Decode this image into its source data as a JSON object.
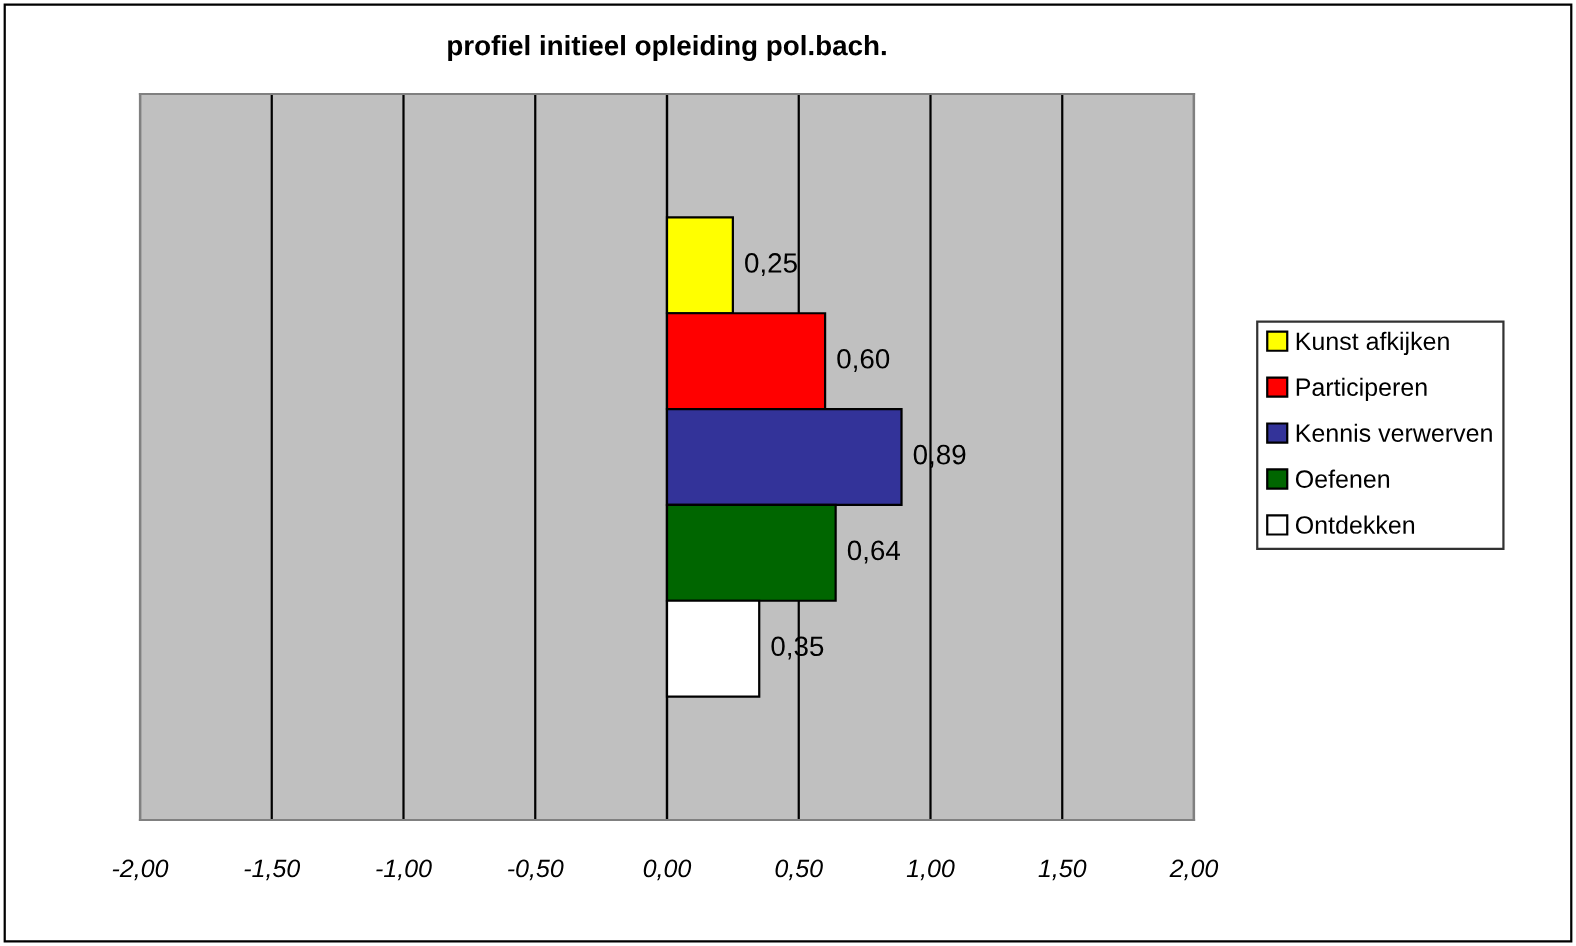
{
  "chart_data": {
    "type": "bar",
    "orientation": "horizontal",
    "title": "profiel initieel opleiding pol.bach.",
    "categories": [
      null
    ],
    "series": [
      {
        "name": "Kunst afkijken",
        "color": "#ffff00",
        "values": [
          0.25
        ],
        "value_labels": [
          "0,25"
        ]
      },
      {
        "name": "Participeren",
        "color": "#ff0000",
        "values": [
          0.6
        ],
        "value_labels": [
          "0,60"
        ]
      },
      {
        "name": "Kennis verwerven",
        "color": "#333399",
        "values": [
          0.89
        ],
        "value_labels": [
          "0,89"
        ]
      },
      {
        "name": "Oefenen",
        "color": "#006600",
        "values": [
          0.64
        ],
        "value_labels": [
          "0,64"
        ]
      },
      {
        "name": "Ontdekken",
        "color": "#ffffff",
        "values": [
          0.35
        ],
        "value_labels": [
          "0,35"
        ]
      }
    ],
    "xlim": [
      -2,
      2
    ],
    "xticks": [
      {
        "value": -2,
        "label": "-2,00"
      },
      {
        "value": -1.5,
        "label": "-1,50"
      },
      {
        "value": -1,
        "label": "-1,00"
      },
      {
        "value": -0.5,
        "label": "-0,50"
      },
      {
        "value": 0,
        "label": "0,00"
      },
      {
        "value": 0.5,
        "label": "0,50"
      },
      {
        "value": 1,
        "label": "1,00"
      },
      {
        "value": 1.5,
        "label": "1,50"
      },
      {
        "value": 2,
        "label": "2,00"
      }
    ],
    "grid": "x",
    "legend": "right"
  }
}
